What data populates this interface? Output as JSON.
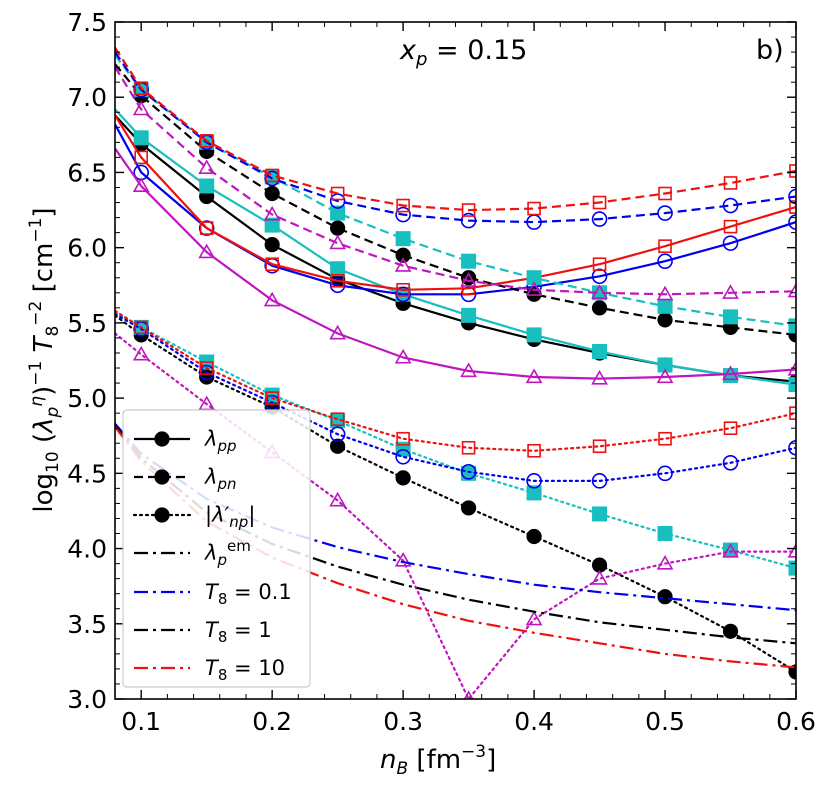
{
  "chart_data": {
    "type": "line",
    "panel_label": "b)",
    "annotation": "x_p = 0.15",
    "xlabel": "n_B [fm^-3]",
    "ylabel": "log10 (lambda_p^eta)^-1 T8^-2 [cm^-1]",
    "xlim": [
      0.08,
      0.6
    ],
    "ylim": [
      3.0,
      7.5
    ],
    "x_ticks": [
      0.1,
      0.2,
      0.3,
      0.4,
      0.5,
      0.6
    ],
    "x_tick_labels": [
      "0.1",
      "0.2",
      "0.3",
      "0.4",
      "0.5",
      "0.6"
    ],
    "y_ticks": [
      3.0,
      3.5,
      4.0,
      4.5,
      5.0,
      5.5,
      6.0,
      6.5,
      7.0,
      7.5
    ],
    "y_tick_labels": [
      "3.0",
      "3.5",
      "4.0",
      "4.5",
      "5.0",
      "5.5",
      "6.0",
      "6.5",
      "7.0",
      "7.5"
    ],
    "legend_position": "lower-left",
    "legend": [
      {
        "label": "λ_pp",
        "style": "solid",
        "marker": "filled-circle",
        "color": "#000000"
      },
      {
        "label": "λ_pn",
        "style": "dashed",
        "marker": "filled-circle",
        "color": "#000000"
      },
      {
        "label": "|λ'_np|",
        "style": "dotted",
        "marker": "filled-circle",
        "color": "#000000"
      },
      {
        "label": "λ_p^em",
        "style": "dashdot",
        "marker": "none",
        "color": "#000000"
      },
      {
        "label": "T8 = 0.1",
        "style": "dashdot",
        "marker": "none",
        "color": "#0000ee"
      },
      {
        "label": "T8 = 1",
        "style": "dashdot",
        "marker": "none",
        "color": "#000000"
      },
      {
        "label": "T8 = 10",
        "style": "dashdot",
        "marker": "none",
        "color": "#ee1111"
      }
    ],
    "x": [
      0.1,
      0.15,
      0.2,
      0.25,
      0.3,
      0.35,
      0.4,
      0.45,
      0.5,
      0.55,
      0.6
    ],
    "series": [
      {
        "name": "pp-black",
        "style": "solid",
        "color": "#000000",
        "marker": "filled-circle",
        "start": [
          0.08,
          6.88
        ],
        "values": [
          6.69,
          6.34,
          6.02,
          5.79,
          5.63,
          5.5,
          5.39,
          5.3,
          5.22,
          5.15,
          5.11
        ]
      },
      {
        "name": "pp-cyan",
        "style": "solid",
        "color": "#17bfbf",
        "marker": "filled-square",
        "start": [
          0.08,
          6.92
        ],
        "values": [
          6.73,
          6.41,
          6.15,
          5.86,
          5.69,
          5.55,
          5.42,
          5.31,
          5.22,
          5.15,
          5.09
        ]
      },
      {
        "name": "pp-blue",
        "style": "solid",
        "color": "#0000ee",
        "marker": "open-circle",
        "start": [
          0.08,
          6.82
        ],
        "values": [
          6.5,
          6.13,
          5.88,
          5.75,
          5.69,
          5.69,
          5.74,
          5.81,
          5.91,
          6.03,
          6.17
        ]
      },
      {
        "name": "pp-red",
        "style": "solid",
        "color": "#ee1111",
        "marker": "open-square",
        "start": [
          0.08,
          6.88
        ],
        "values": [
          6.6,
          6.13,
          5.89,
          5.78,
          5.72,
          5.73,
          5.8,
          5.89,
          6.01,
          6.14,
          6.27
        ]
      },
      {
        "name": "pp-magenta",
        "style": "solid",
        "color": "#bf17bf",
        "marker": "open-triangle",
        "start": [
          0.08,
          6.66
        ],
        "values": [
          6.41,
          5.97,
          5.65,
          5.43,
          5.27,
          5.18,
          5.14,
          5.13,
          5.14,
          5.16,
          5.19
        ]
      },
      {
        "name": "pn-black",
        "style": "dashed",
        "color": "#000000",
        "marker": "filled-circle",
        "start": [
          0.08,
          7.22
        ],
        "values": [
          7.01,
          6.64,
          6.36,
          6.13,
          5.95,
          5.8,
          5.69,
          5.6,
          5.52,
          5.47,
          5.42
        ]
      },
      {
        "name": "pn-cyan",
        "style": "dashed",
        "color": "#17bfbf",
        "marker": "filled-square",
        "start": [
          0.08,
          7.28
        ],
        "values": [
          7.05,
          6.7,
          6.47,
          6.23,
          6.06,
          5.91,
          5.8,
          5.7,
          5.61,
          5.54,
          5.48
        ]
      },
      {
        "name": "pn-blue",
        "style": "dashed",
        "color": "#0000ee",
        "marker": "open-circle",
        "start": [
          0.08,
          7.3
        ],
        "values": [
          7.05,
          6.7,
          6.46,
          6.31,
          6.22,
          6.18,
          6.17,
          6.19,
          6.23,
          6.28,
          6.34
        ]
      },
      {
        "name": "pn-red",
        "style": "dashed",
        "color": "#ee1111",
        "marker": "open-square",
        "start": [
          0.08,
          7.33
        ],
        "values": [
          7.06,
          6.71,
          6.48,
          6.36,
          6.28,
          6.25,
          6.26,
          6.3,
          6.36,
          6.43,
          6.51
        ]
      },
      {
        "name": "pn-magenta",
        "style": "dashed",
        "color": "#bf17bf",
        "marker": "open-triangle",
        "start": [
          0.08,
          7.2
        ],
        "values": [
          6.92,
          6.53,
          6.22,
          6.03,
          5.88,
          5.78,
          5.72,
          5.7,
          5.69,
          5.7,
          5.71
        ]
      },
      {
        "name": "np-black",
        "style": "dotted",
        "color": "#000000",
        "marker": "filled-circle",
        "start": [
          0.08,
          5.55
        ],
        "values": [
          5.42,
          5.14,
          4.94,
          4.68,
          4.47,
          4.27,
          4.08,
          3.89,
          3.68,
          3.45,
          3.18
        ]
      },
      {
        "name": "np-cyan",
        "style": "dotted",
        "color": "#17bfbf",
        "marker": "filled-square",
        "start": [
          0.08,
          5.57
        ],
        "values": [
          5.47,
          5.24,
          5.02,
          4.85,
          4.66,
          4.5,
          4.37,
          4.23,
          4.1,
          3.99,
          3.87
        ]
      },
      {
        "name": "np-blue",
        "style": "dotted",
        "color": "#0000ee",
        "marker": "open-circle",
        "start": [
          0.08,
          5.56
        ],
        "values": [
          5.46,
          5.17,
          4.97,
          4.76,
          4.61,
          4.51,
          4.45,
          4.45,
          4.5,
          4.57,
          4.67
        ]
      },
      {
        "name": "np-red",
        "style": "dotted",
        "color": "#ee1111",
        "marker": "open-square",
        "start": [
          0.08,
          5.58
        ],
        "values": [
          5.47,
          5.2,
          5.0,
          4.86,
          4.73,
          4.67,
          4.65,
          4.68,
          4.73,
          4.8,
          4.9
        ]
      },
      {
        "name": "np-magenta",
        "style": "dotted",
        "color": "#bf17bf",
        "marker": "open-triangle",
        "start": [
          0.08,
          5.43
        ],
        "values": [
          5.29,
          4.96,
          4.64,
          4.32,
          3.92,
          3.0,
          3.53,
          3.8,
          3.9,
          3.98,
          3.98
        ]
      },
      {
        "name": "em-T8-0.1",
        "style": "dashdot",
        "color": "#0000ee",
        "marker": "none",
        "x": [
          0.08,
          0.1,
          0.15,
          0.2,
          0.25,
          0.3,
          0.35,
          0.4,
          0.45,
          0.5,
          0.55,
          0.6
        ],
        "values": [
          4.83,
          4.63,
          4.33,
          4.14,
          4.01,
          3.91,
          3.83,
          3.76,
          3.71,
          3.67,
          3.63,
          3.59
        ]
      },
      {
        "name": "em-T8-1",
        "style": "dashdot",
        "color": "#000000",
        "marker": "none",
        "x": [
          0.08,
          0.1,
          0.15,
          0.2,
          0.25,
          0.3,
          0.35,
          0.4,
          0.45,
          0.5,
          0.55,
          0.6
        ],
        "values": [
          4.82,
          4.6,
          4.24,
          4.03,
          3.88,
          3.76,
          3.66,
          3.58,
          3.51,
          3.46,
          3.41,
          3.37
        ]
      },
      {
        "name": "em-T8-10",
        "style": "dashdot",
        "color": "#ee1111",
        "marker": "none",
        "x": [
          0.08,
          0.1,
          0.15,
          0.2,
          0.25,
          0.3,
          0.35,
          0.4,
          0.45,
          0.5,
          0.55,
          0.6
        ],
        "values": [
          4.81,
          4.58,
          4.18,
          3.94,
          3.77,
          3.63,
          3.52,
          3.44,
          3.37,
          3.3,
          3.25,
          3.21
        ]
      }
    ]
  }
}
